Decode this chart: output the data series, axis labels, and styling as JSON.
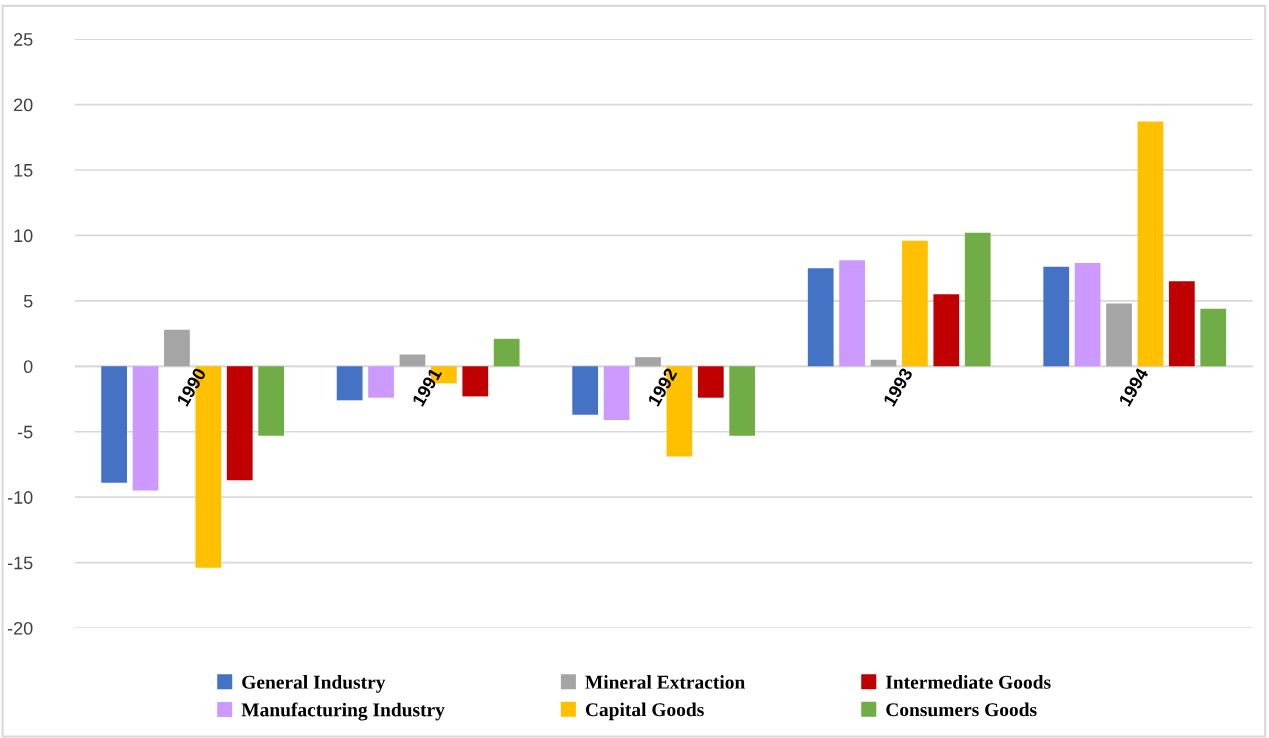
{
  "chart_data": {
    "type": "bar",
    "categories": [
      "1990",
      "1991",
      "1992",
      "1993",
      "1994"
    ],
    "series": [
      {
        "name": "General Industry",
        "color": "#4472c4",
        "values": [
          -8.9,
          -2.6,
          -3.7,
          7.5,
          7.6
        ]
      },
      {
        "name": "Manufacturing Industry",
        "color": "#cc99ff",
        "values": [
          -9.5,
          -2.4,
          -4.1,
          8.1,
          7.9
        ]
      },
      {
        "name": "Mineral Extraction",
        "color": "#a5a5a5",
        "values": [
          2.8,
          0.9,
          0.7,
          0.5,
          4.8
        ]
      },
      {
        "name": "Capital Goods",
        "color": "#ffc000",
        "values": [
          -15.4,
          -1.3,
          -6.9,
          9.6,
          18.7
        ]
      },
      {
        "name": "Intermediate Goods",
        "color": "#c00000",
        "values": [
          -8.7,
          -2.3,
          -2.4,
          5.5,
          6.5
        ]
      },
      {
        "name": "Consumers Goods",
        "color": "#70ad47",
        "values": [
          -5.3,
          2.1,
          -5.3,
          10.2,
          4.4
        ]
      }
    ],
    "ylim": [
      -20,
      25
    ],
    "yticks": [
      -20,
      -15,
      -10,
      -5,
      0,
      5,
      10,
      15,
      20,
      25
    ],
    "grid": "y",
    "legend": "bottom"
  }
}
